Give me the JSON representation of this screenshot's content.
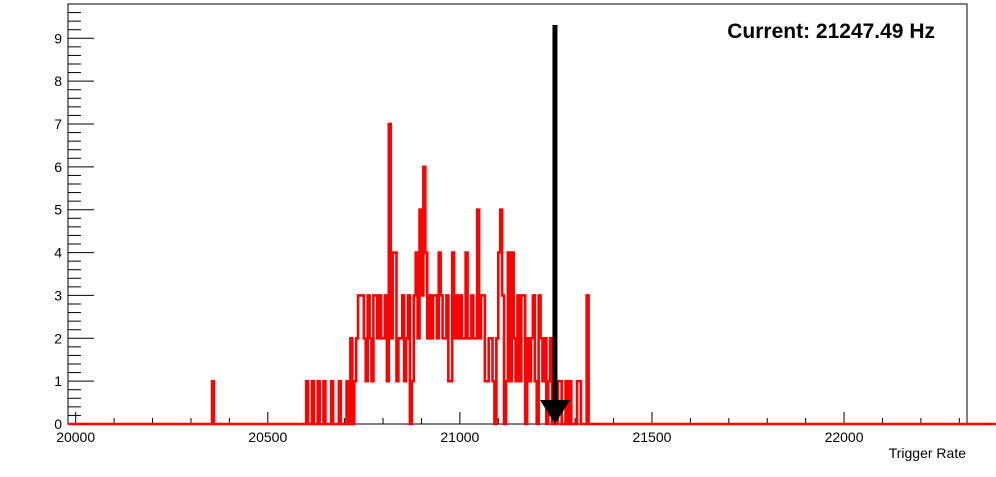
{
  "chart_data": {
    "type": "histogram",
    "title": "",
    "xlabel": "Trigger Rate",
    "ylabel": "",
    "xlim": [
      19980,
      22320
    ],
    "ylim": [
      0,
      9.8
    ],
    "x_ticks": [
      20000,
      20500,
      21000,
      21500,
      22000
    ],
    "x_tick_labels": [
      "20000",
      "20500",
      "21000",
      "21500",
      "22000"
    ],
    "y_ticks": [
      0,
      1,
      2,
      3,
      4,
      5,
      6,
      7,
      8,
      9
    ],
    "y_tick_labels": [
      "0",
      "1",
      "2",
      "3",
      "4",
      "5",
      "6",
      "7",
      "8",
      "9"
    ],
    "grid": false,
    "line_color": "#ff0000",
    "bin_width": 5,
    "x_start": 19980,
    "counts": [
      0,
      0,
      0,
      0,
      0,
      0,
      0,
      0,
      0,
      0,
      0,
      0,
      0,
      0,
      0,
      0,
      0,
      0,
      0,
      0,
      0,
      0,
      0,
      0,
      0,
      0,
      0,
      0,
      0,
      0,
      0,
      0,
      0,
      0,
      0,
      0,
      0,
      0,
      0,
      0,
      0,
      0,
      0,
      0,
      0,
      0,
      0,
      0,
      0,
      0,
      0,
      0,
      0,
      0,
      0,
      0,
      0,
      0,
      0,
      0,
      0,
      0,
      0,
      0,
      0,
      0,
      0,
      0,
      0,
      0,
      0,
      0,
      0,
      0,
      0,
      1,
      0,
      0,
      0,
      0,
      0,
      0,
      0,
      0,
      0,
      0,
      0,
      0,
      0,
      0,
      0,
      0,
      0,
      0,
      0,
      0,
      0,
      0,
      0,
      0,
      0,
      0,
      0,
      0,
      0,
      0,
      0,
      0,
      0,
      0,
      0,
      0,
      0,
      0,
      0,
      0,
      0,
      0,
      0,
      0,
      0,
      0,
      0,
      0,
      1,
      0,
      0,
      1,
      0,
      0,
      1,
      0,
      0,
      1,
      0,
      0,
      0,
      1,
      0,
      0,
      0,
      1,
      0,
      0,
      0,
      1,
      0,
      2,
      0,
      1,
      2,
      3,
      3,
      3,
      2,
      1,
      3,
      2,
      1,
      3,
      3,
      2,
      3,
      2,
      2,
      3,
      1,
      7,
      2,
      4,
      4,
      1,
      2,
      2,
      3,
      1,
      2,
      3,
      0,
      1,
      3,
      4,
      2,
      5,
      3,
      6,
      4,
      2,
      3,
      2,
      3,
      3,
      2,
      4,
      3,
      2,
      2,
      3,
      1,
      1,
      4,
      2,
      3,
      2,
      3,
      2,
      2,
      4,
      2,
      2,
      3,
      2,
      2,
      5,
      2,
      3,
      3,
      1,
      1,
      2,
      2,
      1,
      0,
      2,
      4,
      5,
      3,
      0,
      1,
      4,
      1,
      4,
      2,
      1,
      3,
      1,
      3,
      3,
      0,
      2,
      1,
      2,
      3,
      1,
      0,
      3,
      2,
      1,
      2,
      0,
      1,
      2,
      0,
      0,
      0,
      1,
      1,
      0,
      0,
      1,
      0,
      1,
      0,
      0,
      0,
      1,
      1,
      0,
      0,
      0,
      3,
      0,
      0,
      0,
      0,
      0,
      0,
      0,
      0,
      0,
      0,
      0,
      0,
      0,
      0,
      0,
      0,
      0,
      0,
      0,
      0,
      0,
      0,
      0,
      0,
      0,
      0,
      0,
      0,
      0,
      0,
      0,
      0,
      0,
      0,
      0,
      0,
      0,
      0,
      0,
      0,
      0,
      0,
      0,
      0,
      0,
      0,
      0,
      0,
      0,
      0,
      0,
      0,
      0,
      0,
      0,
      0,
      0,
      0,
      0,
      0,
      0,
      0,
      0,
      0,
      0,
      0,
      0,
      0,
      0,
      0,
      0,
      0,
      0,
      0,
      0,
      0,
      0,
      0,
      0,
      0,
      0,
      0,
      0,
      0,
      0,
      0,
      0,
      0,
      0,
      0,
      0,
      0,
      0,
      0,
      0,
      0,
      0,
      0,
      0,
      0,
      0,
      0,
      0,
      0,
      0,
      0,
      0,
      0,
      0,
      0,
      0,
      0,
      0,
      0,
      0,
      0,
      0,
      0,
      0,
      0,
      0,
      0,
      0,
      0,
      0,
      0,
      0,
      0,
      0,
      0,
      0,
      0,
      0,
      0,
      0,
      0,
      0,
      0,
      0,
      0,
      0,
      0,
      0,
      0,
      0,
      0,
      0,
      0,
      0,
      0,
      0,
      0,
      0,
      0,
      0,
      0,
      0,
      0,
      0,
      0,
      0,
      0,
      0,
      0,
      0,
      0,
      0,
      0,
      0,
      0,
      0,
      0,
      0,
      0,
      0,
      0,
      0,
      0,
      0,
      0,
      0,
      0,
      0,
      0,
      0,
      0,
      0,
      0,
      0,
      0,
      0,
      0,
      0,
      0,
      0,
      0,
      0,
      0,
      0,
      0,
      0,
      0,
      0,
      0,
      0,
      0,
      0,
      0,
      0,
      0,
      0,
      0
    ],
    "arrow": {
      "x": 21247.49,
      "color": "#000000"
    },
    "annotation": "Current: 21247.49 Hz"
  }
}
